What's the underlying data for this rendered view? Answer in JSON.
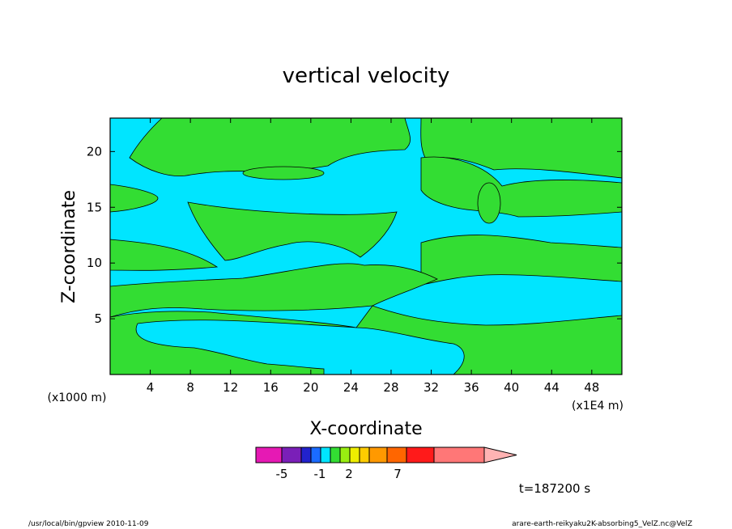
{
  "title": "vertical velocity",
  "footer": {
    "left": "/usr/local/bin/gpview  2010-11-09",
    "right": "arare-earth-reikyaku2K-absorbing5_VelZ.nc@VelZ"
  },
  "time_label": "t=187200 s",
  "colorbar": {
    "colors": [
      "#e619b4",
      "#7a1fb8",
      "#2222cc",
      "#1a6bff",
      "#00e5ff",
      "#33dd33",
      "#99ee11",
      "#eeee00",
      "#ffcc00",
      "#ff9900",
      "#ff6600",
      "#ff1a1a",
      "#ff7777",
      "#ffb3b3"
    ],
    "labels": [
      "-5",
      "-1",
      "2",
      "7"
    ]
  },
  "chart_data": {
    "type": "heatmap",
    "title": "vertical velocity",
    "xlabel": "X-coordinate",
    "ylabel": "Z-coordinate",
    "x_unit": "(x1E4 m)",
    "y_unit": "(x1000 m)",
    "xlim": [
      0,
      51
    ],
    "ylim": [
      0,
      23
    ],
    "x_ticks": [
      4,
      8,
      12,
      16,
      20,
      24,
      28,
      32,
      36,
      40,
      44,
      48
    ],
    "y_ticks": [
      5,
      10,
      15,
      20
    ],
    "fill_colors": {
      "negative": "#00e5ff",
      "positive": "#33dd33"
    },
    "time": "t=187200 s"
  }
}
